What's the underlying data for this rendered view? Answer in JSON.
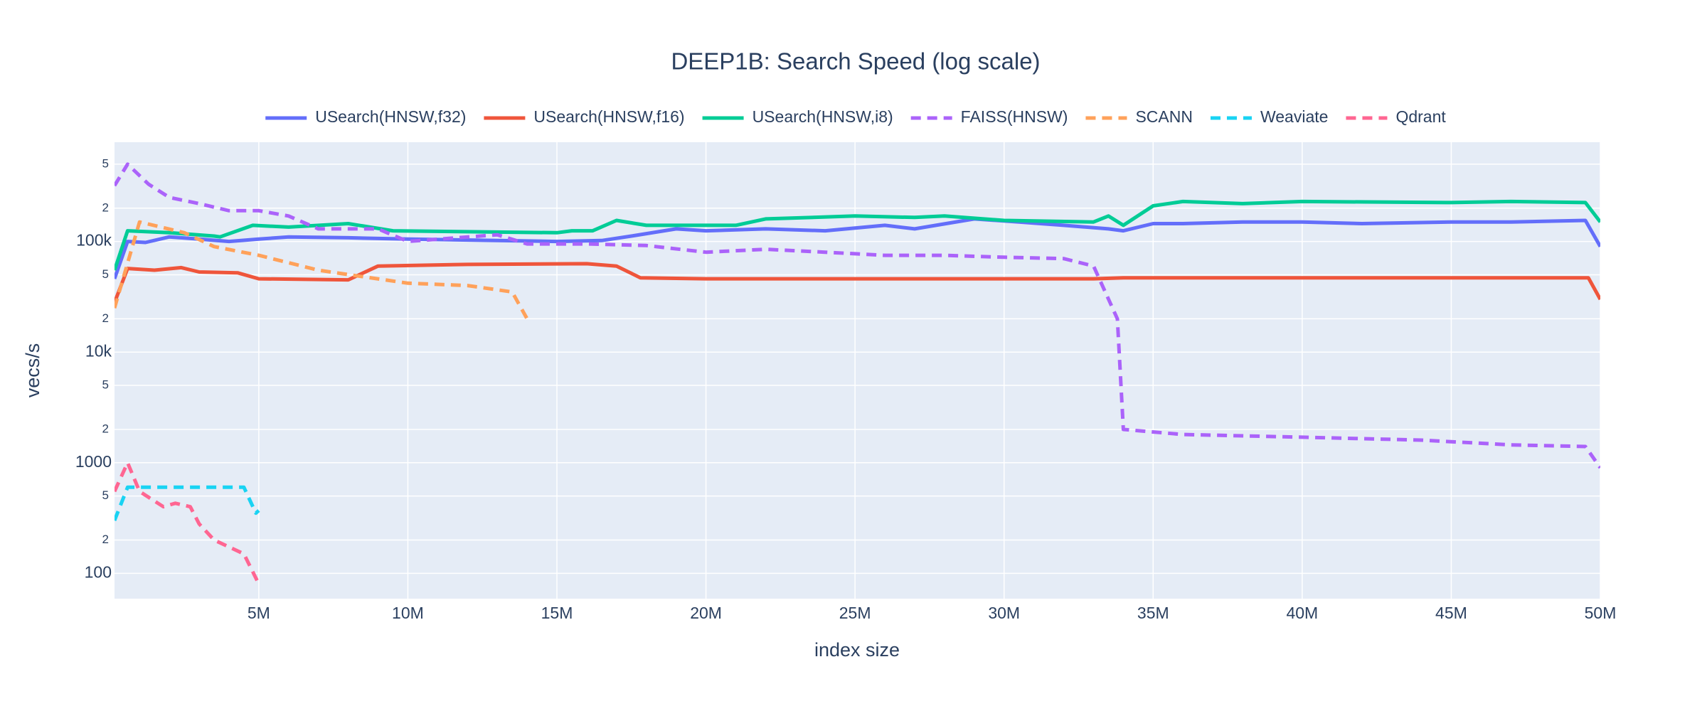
{
  "chart_data": {
    "type": "line",
    "title": "DEEP1B: Search Speed (log scale)",
    "x_label": "index size",
    "y_label": "vecs/s",
    "log_y": true,
    "grid": true,
    "legend": "top",
    "xlim": [
      160000,
      50000000
    ],
    "xticks": [
      {
        "value": 5000000,
        "label": "5M"
      },
      {
        "value": 10000000,
        "label": "10M"
      },
      {
        "value": 15000000,
        "label": "15M"
      },
      {
        "value": 20000000,
        "label": "20M"
      },
      {
        "value": 25000000,
        "label": "25M"
      },
      {
        "value": 30000000,
        "label": "30M"
      },
      {
        "value": 35000000,
        "label": "35M"
      },
      {
        "value": 40000000,
        "label": "40M"
      },
      {
        "value": 45000000,
        "label": "45M"
      },
      {
        "value": 50000000,
        "label": "50M"
      }
    ],
    "ylim": [
      59,
      790000
    ],
    "yticks": [
      100,
      {
        "value": 200,
        "label": "2"
      },
      {
        "value": 500,
        "label": "5"
      },
      1000,
      {
        "value": 2000,
        "label": "2"
      },
      {
        "value": 5000,
        "label": "5"
      },
      {
        "value": 10000,
        "label": "10k"
      },
      {
        "value": 20000,
        "label": "2"
      },
      {
        "value": 50000,
        "label": "5"
      },
      {
        "value": 100000,
        "label": "100k"
      },
      {
        "value": 200000,
        "label": "2"
      },
      {
        "value": 500000,
        "label": "5"
      }
    ],
    "series": [
      {
        "name": "USearch(HNSW,f32)",
        "color": "#636efa",
        "dash": "solid",
        "x": [
          160000,
          600000,
          1200000,
          2000000,
          3000000,
          4000000,
          5000000,
          6000000,
          8000000,
          10000000,
          13000000,
          15000000,
          16500000,
          17500000,
          19000000,
          20000000,
          22000000,
          24000000,
          26000000,
          27000000,
          29000000,
          30500000,
          32000000,
          33500000,
          34000000,
          35000000,
          36000000,
          38000000,
          40000000,
          42000000,
          45000000,
          47000000,
          49500000,
          50000000
        ],
        "values": [
          46000,
          100000,
          98000,
          110000,
          105000,
          100000,
          105000,
          110000,
          108000,
          105000,
          102000,
          100000,
          102000,
          112000,
          130000,
          125000,
          130000,
          125000,
          140000,
          130000,
          160000,
          150000,
          140000,
          130000,
          125000,
          145000,
          145000,
          150000,
          150000,
          145000,
          150000,
          150000,
          155000,
          90000
        ]
      },
      {
        "name": "USearch(HNSW,f16)",
        "color": "#ef553b",
        "dash": "solid",
        "x": [
          160000,
          600000,
          1500000,
          2400000,
          3000000,
          4300000,
          5000000,
          8000000,
          9000000,
          12000000,
          16000000,
          17000000,
          17800000,
          20000000,
          33000000,
          34000000,
          49600000,
          50000000
        ],
        "values": [
          28000,
          57000,
          55000,
          58000,
          53000,
          52000,
          46000,
          45000,
          60000,
          62000,
          63000,
          60000,
          47000,
          46000,
          46000,
          47000,
          47000,
          30000
        ]
      },
      {
        "name": "USearch(HNSW,i8)",
        "color": "#00cc96",
        "dash": "solid",
        "x": [
          160000,
          600000,
          2000000,
          3500000,
          3700000,
          4800000,
          6000000,
          8000000,
          9500000,
          15000000,
          15500000,
          16200000,
          17000000,
          18000000,
          21000000,
          22000000,
          25000000,
          27000000,
          28000000,
          30000000,
          33000000,
          33500000,
          34000000,
          35000000,
          36000000,
          38000000,
          40000000,
          45000000,
          47000000,
          49500000,
          50000000
        ],
        "values": [
          55000,
          125000,
          120000,
          112000,
          110000,
          140000,
          135000,
          145000,
          125000,
          120000,
          125000,
          125000,
          155000,
          140000,
          140000,
          160000,
          170000,
          165000,
          170000,
          155000,
          150000,
          170000,
          140000,
          210000,
          230000,
          220000,
          230000,
          225000,
          230000,
          225000,
          150000
        ]
      },
      {
        "name": "FAISS(HNSW)",
        "color": "#ab63fa",
        "dash": "dash",
        "x": [
          160000,
          600000,
          1300000,
          2000000,
          3000000,
          4000000,
          5000000,
          6000000,
          7000000,
          9000000,
          10000000,
          13000000,
          14000000,
          16000000,
          18000000,
          20000000,
          22000000,
          24000000,
          26000000,
          28000000,
          30000000,
          32000000,
          33000000,
          33800000,
          34000000,
          36000000,
          40000000,
          44000000,
          47000000,
          49500000,
          50000000
        ],
        "values": [
          320000,
          500000,
          330000,
          250000,
          220000,
          190000,
          190000,
          170000,
          130000,
          130000,
          100000,
          115000,
          95000,
          95000,
          92000,
          80000,
          85000,
          80000,
          75000,
          75000,
          72000,
          70000,
          60000,
          20000,
          2000,
          1800,
          1700,
          1600,
          1450,
          1400,
          900
        ]
      },
      {
        "name": "SCANN",
        "color": "#ffa15a",
        "dash": "dash",
        "x": [
          160000,
          1000000,
          2500000,
          3500000,
          5000000,
          7000000,
          8500000,
          10000000,
          12000000,
          13500000,
          14000000
        ],
        "values": [
          25000,
          150000,
          120000,
          90000,
          75000,
          55000,
          48000,
          42000,
          40000,
          35000,
          20000
        ]
      },
      {
        "name": "Weaviate",
        "color": "#19d3f3",
        "dash": "dash",
        "x": [
          160000,
          600000,
          4500000,
          4900000,
          5000000
        ],
        "values": [
          300,
          600,
          600,
          350,
          370
        ]
      },
      {
        "name": "Qdrant",
        "color": "#ff6692",
        "dash": "dash",
        "x": [
          160000,
          600000,
          1000000,
          1800000,
          2200000,
          2700000,
          3000000,
          3500000,
          4500000,
          5000000
        ],
        "values": [
          550,
          1000,
          550,
          400,
          430,
          400,
          280,
          200,
          150,
          80
        ]
      }
    ]
  }
}
